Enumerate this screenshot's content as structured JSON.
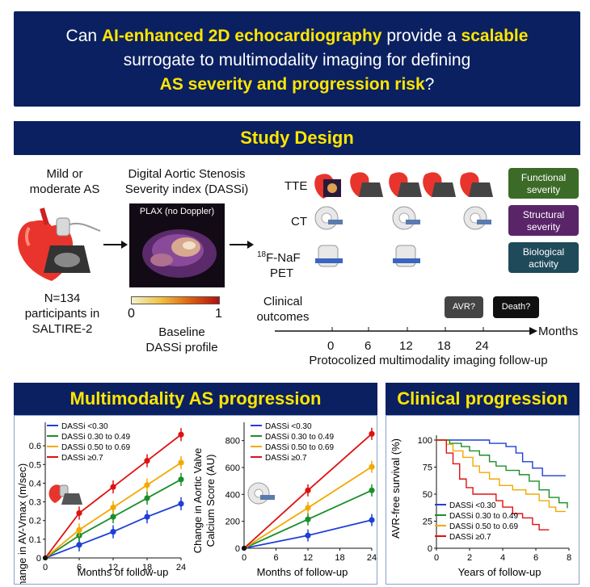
{
  "header": {
    "q_part1": "Can ",
    "q_hl1": "AI-enhanced 2D echocardiography",
    "q_part2": " provide a ",
    "q_hl2": "scalable",
    "q_line2": "surrogate to multimodality imaging for defining",
    "q_hl3": "AS severity and progression risk",
    "q_end": "?"
  },
  "study_design": {
    "title": "Study Design",
    "cohort_label": "Mild or\nmoderate AS",
    "cohort_count": "N=134\nparticipants in\nSALTIRE-2",
    "dassi_label": "Digital Aortic Stenosis\nSeverity index (DASSi)",
    "plax_label": "PLAX (no Doppler)",
    "scale_min": "0",
    "scale_max": "1",
    "baseline_label": "Baseline\nDASSi profile",
    "modalities": [
      "TTE",
      "CT",
      "18F-NaF PET"
    ],
    "modality_pet_sup": "18",
    "modality_pet_rest": "F-NaF",
    "modality_pet_line2": "PET",
    "clinical_outcomes": "Clinical\noutcomes",
    "outcome_badges": [
      "AVR?",
      "Death?"
    ],
    "severity_boxes": [
      {
        "label": "Functional\nseverity",
        "color": "#3c6b28"
      },
      {
        "label": "Structural\nseverity",
        "color": "#5a2469"
      },
      {
        "label": "Biological\nactivity",
        "color": "#1e4a5a"
      }
    ],
    "timeline_ticks": [
      "0",
      "6",
      "12",
      "18",
      "24"
    ],
    "timeline_unit": "Months",
    "timeline_caption": "Protocolized multimodality imaging follow-up"
  },
  "progression": {
    "title": "Multimodality AS progression",
    "clinical_title": "Clinical progression"
  },
  "chart_data": [
    {
      "type": "line",
      "ylabel": "Change in AV-Vmax (m/sec)",
      "xlabel": "Months of follow-up",
      "x": [
        0,
        6,
        12,
        18,
        24
      ],
      "ylim": [
        0,
        0.7
      ],
      "yticks": [
        "0",
        "0.1",
        "0.2",
        "0.3",
        "0.4",
        "0.5",
        "0.6"
      ],
      "xticks": [
        "0",
        "6",
        "12",
        "18",
        "24"
      ],
      "series": [
        {
          "name": "DASSi <0.30",
          "color": "#1f3fd6",
          "values": [
            0,
            0.07,
            0.14,
            0.22,
            0.29
          ]
        },
        {
          "name": "DASSi 0.30 to 0.49",
          "color": "#1a8f2a",
          "values": [
            0,
            0.12,
            0.22,
            0.32,
            0.42
          ]
        },
        {
          "name": "DASSi 0.50 to 0.69",
          "color": "#f2a900",
          "values": [
            0,
            0.15,
            0.27,
            0.39,
            0.51
          ]
        },
        {
          "name": "DASSi ≥0.7",
          "color": "#e01010",
          "values": [
            0,
            0.24,
            0.38,
            0.52,
            0.66
          ]
        }
      ]
    },
    {
      "type": "line",
      "ylabel": "Change in Aortic Valve Calcium Score (AU)",
      "ylabel_line1": "Change in Aortic Valve",
      "ylabel_line2": "Calcium Score (AU)",
      "xlabel": "Months of follow-up",
      "x": [
        0,
        12,
        24
      ],
      "ylim": [
        0,
        900
      ],
      "yticks": [
        "0",
        "200",
        "400",
        "600",
        "800"
      ],
      "xticks": [
        "0",
        "6",
        "12",
        "18",
        "24"
      ],
      "series": [
        {
          "name": "DASSi <0.30",
          "color": "#1f3fd6",
          "values": [
            0,
            95,
            210
          ]
        },
        {
          "name": "DASSi 0.30 to 0.49",
          "color": "#1a8f2a",
          "values": [
            0,
            215,
            430
          ]
        },
        {
          "name": "DASSi 0.50 to 0.69",
          "color": "#f2a900",
          "values": [
            0,
            300,
            605
          ]
        },
        {
          "name": "DASSi ≥0.7",
          "color": "#e01010",
          "values": [
            0,
            430,
            850
          ]
        }
      ]
    },
    {
      "type": "line",
      "ylabel": "AVR-free survival (%)",
      "xlabel": "Years of follow-up",
      "xlim": [
        0,
        8
      ],
      "ylim": [
        0,
        100
      ],
      "yticks": [
        "0",
        "25",
        "50",
        "75",
        "100"
      ],
      "xticks": [
        "0",
        "2",
        "4",
        "6",
        "8"
      ],
      "series": [
        {
          "name": "DASSi <0.30",
          "color": "#1f3fd6",
          "step": [
            [
              0,
              100
            ],
            [
              2.5,
              100
            ],
            [
              3.2,
              97
            ],
            [
              4.2,
              94
            ],
            [
              4.8,
              88
            ],
            [
              5.2,
              80
            ],
            [
              5.8,
              74
            ],
            [
              6.4,
              67
            ],
            [
              7.8,
              67
            ]
          ]
        },
        {
          "name": "DASSi 0.30 to 0.49",
          "color": "#1a8f2a",
          "step": [
            [
              0,
              100
            ],
            [
              0.8,
              97
            ],
            [
              1.5,
              94
            ],
            [
              2.0,
              90
            ],
            [
              2.6,
              86
            ],
            [
              3.2,
              80
            ],
            [
              3.6,
              76
            ],
            [
              4.2,
              72
            ],
            [
              5.0,
              68
            ],
            [
              5.6,
              62
            ],
            [
              6.2,
              54
            ],
            [
              6.8,
              47
            ],
            [
              7.4,
              42
            ],
            [
              7.9,
              37
            ]
          ]
        },
        {
          "name": "DASSi 0.50 to 0.69",
          "color": "#f2a900",
          "step": [
            [
              0,
              100
            ],
            [
              0.6,
              96
            ],
            [
              1.0,
              90
            ],
            [
              1.6,
              84
            ],
            [
              2.2,
              76
            ],
            [
              2.6,
              70
            ],
            [
              3.2,
              64
            ],
            [
              3.8,
              58
            ],
            [
              4.6,
              54
            ],
            [
              5.4,
              50
            ],
            [
              6.2,
              44
            ],
            [
              6.8,
              38
            ],
            [
              7.2,
              34
            ],
            [
              7.8,
              34
            ]
          ]
        },
        {
          "name": "DASSi ≥0.7",
          "color": "#e01010",
          "step": [
            [
              0,
              100
            ],
            [
              0.6,
              88
            ],
            [
              1.0,
              78
            ],
            [
              1.4,
              64
            ],
            [
              1.8,
              56
            ],
            [
              2.2,
              50
            ],
            [
              3.2,
              50
            ],
            [
              3.6,
              44
            ],
            [
              4.0,
              38
            ],
            [
              4.6,
              32
            ],
            [
              5.2,
              28
            ],
            [
              5.8,
              22
            ],
            [
              6.2,
              17
            ],
            [
              6.8,
              17
            ]
          ]
        }
      ],
      "legend": [
        "DASSi <0.30",
        "DASSi 0.30 to 0.49",
        "DASSi 0.50 to 0.69",
        "DASSi ≥0.7"
      ]
    }
  ]
}
